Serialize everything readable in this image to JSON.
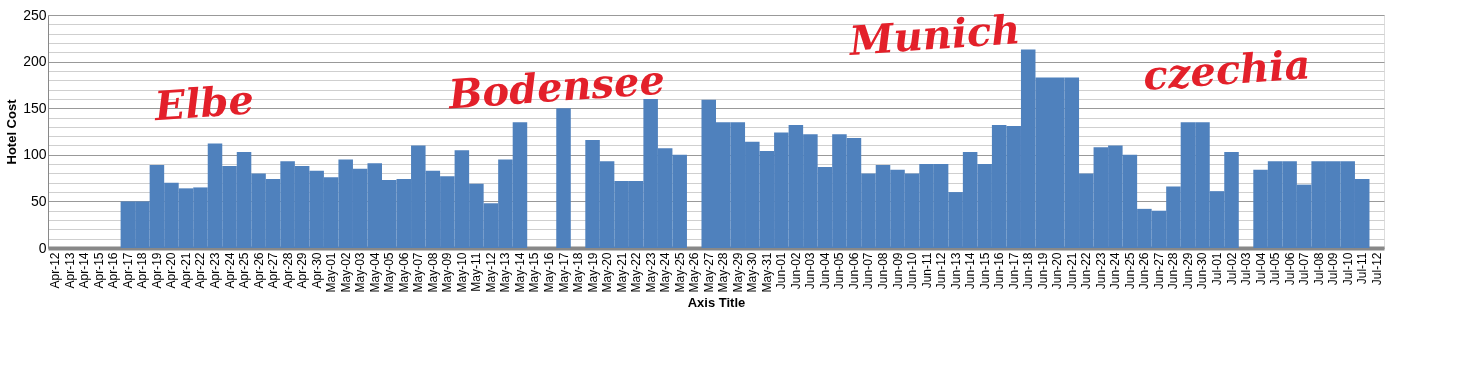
{
  "chart_data": {
    "type": "bar",
    "xlabel": "Axis Title",
    "ylabel": "Hotel Cost",
    "categories": [
      "Apr-12",
      "Apr-13",
      "Apr-14",
      "Apr-15",
      "Apr-16",
      "Apr-17",
      "Apr-18",
      "Apr-19",
      "Apr-20",
      "Apr-21",
      "Apr-22",
      "Apr-23",
      "Apr-24",
      "Apr-25",
      "Apr-26",
      "Apr-27",
      "Apr-28",
      "Apr-29",
      "Apr-30",
      "May-01",
      "May-02",
      "May-03",
      "May-04",
      "May-05",
      "May-06",
      "May-07",
      "May-08",
      "May-09",
      "May-10",
      "May-11",
      "May-12",
      "May-13",
      "May-14",
      "May-15",
      "May-16",
      "May-17",
      "May-18",
      "May-19",
      "May-20",
      "May-21",
      "May-22",
      "May-23",
      "May-24",
      "May-25",
      "May-26",
      "May-27",
      "May-28",
      "May-29",
      "May-30",
      "May-31",
      "Jun-01",
      "Jun-02",
      "Jun-03",
      "Jun-04",
      "Jun-05",
      "Jun-06",
      "Jun-07",
      "Jun-08",
      "Jun-09",
      "Jun-10",
      "Jun-11",
      "Jun-12",
      "Jun-13",
      "Jun-14",
      "Jun-15",
      "Jun-16",
      "Jun-17",
      "Jun-18",
      "Jun-19",
      "Jun-20",
      "Jun-21",
      "Jun-22",
      "Jun-23",
      "Jun-24",
      "Jun-25",
      "Jun-26",
      "Jun-27",
      "Jun-28",
      "Jun-29",
      "Jun-30",
      "Jul-01",
      "Jul-02",
      "Jul-03",
      "Jul-04",
      "Jul-05",
      "Jul-06",
      "Jul-07",
      "Jul-08",
      "Jul-09",
      "Jul-10",
      "Jul-11",
      "Jul-12"
    ],
    "values": [
      0,
      0,
      0,
      0,
      0,
      50,
      50,
      89,
      70,
      64,
      65,
      112,
      88,
      103,
      80,
      74,
      93,
      88,
      83,
      76,
      95,
      85,
      91,
      73,
      74,
      110,
      83,
      77,
      105,
      69,
      48,
      95,
      135,
      0,
      0,
      150,
      0,
      116,
      93,
      72,
      72,
      160,
      107,
      100,
      0,
      159,
      135,
      135,
      114,
      104,
      124,
      132,
      122,
      87,
      122,
      118,
      80,
      89,
      84,
      80,
      90,
      90,
      60,
      103,
      90,
      132,
      131,
      213,
      183,
      183,
      183,
      80,
      108,
      110,
      100,
      42,
      40,
      66,
      135,
      135,
      61,
      103,
      0,
      84,
      93,
      93,
      68,
      93,
      93,
      93,
      74,
      0
    ],
    "color": "#4f81bd",
    "ylim": [
      0,
      250
    ],
    "yticks": [
      0,
      {
        "value": 10,
        "label": null
      },
      {
        "value": 20,
        "label": null
      },
      {
        "value": 30,
        "label": null
      },
      {
        "value": 40,
        "label": null
      },
      50,
      {
        "value": 60,
        "label": null
      },
      {
        "value": 70,
        "label": null
      },
      {
        "value": 80,
        "label": null
      },
      {
        "value": 90,
        "label": null
      },
      100,
      {
        "value": 110,
        "label": null
      },
      {
        "value": 120,
        "label": null
      },
      {
        "value": 130,
        "label": null
      },
      {
        "value": 140,
        "label": null
      },
      150,
      {
        "value": 160,
        "label": null
      },
      {
        "value": 170,
        "label": null
      },
      {
        "value": 180,
        "label": null
      },
      {
        "value": 190,
        "label": null
      },
      200,
      {
        "value": 210,
        "label": null
      },
      {
        "value": 220,
        "label": null
      },
      {
        "value": 230,
        "label": null
      },
      {
        "value": 240,
        "label": null
      },
      250
    ],
    "grid": "y",
    "annotations": [
      "Elbe",
      "Bodensee",
      "Munich",
      "czechia"
    ]
  }
}
